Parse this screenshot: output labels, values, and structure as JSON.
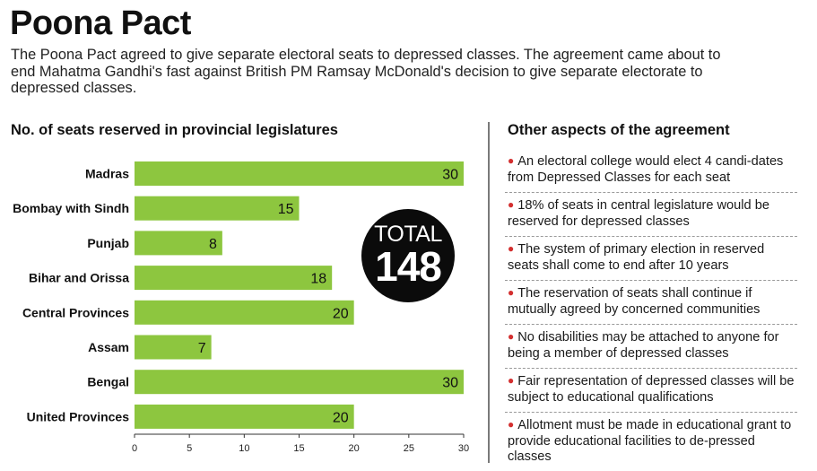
{
  "header": {
    "title": "Poona Pact",
    "subtitle": "The Poona Pact agreed to give separate electoral seats to depressed classes. The agreement came about to end Mahatma Gandhi's fast against British PM Ramsay McDonald's decision to give separate electorate to depressed classes."
  },
  "chart_heading": "No. of seats reserved in provincial legislatures",
  "total": {
    "label": "TOTAL",
    "value": "148"
  },
  "aspects": {
    "heading": "Other aspects of the agreement",
    "items": [
      "An electoral college would elect 4 candi-dates from Depressed Classes for each seat",
      "18% of seats in central legislature would be reserved for depressed classes",
      "The system of primary election in reserved seats shall come to end after 10 years",
      "The reservation of seats shall continue if mutually agreed by concerned communities",
      "No disabilities may be attached to anyone for being a member of depressed classes",
      "Fair representation of depressed classes will be subject to educational qualifications",
      "Allotment must be made in educational grant to provide educational facilities to de-pressed classes"
    ]
  },
  "colors": {
    "bar": "#8dc63f",
    "bullet": "#d32f2f",
    "badge": "#0b0b0b"
  },
  "chart_data": {
    "type": "bar",
    "orientation": "horizontal",
    "title": "No. of seats reserved in provincial legislatures",
    "xlabel": "",
    "ylabel": "",
    "categories": [
      "Madras",
      "Bombay with Sindh",
      "Punjab",
      "Bihar and Orissa",
      "Central Provinces",
      "Assam",
      "Bengal",
      "United Provinces"
    ],
    "values": [
      30,
      15,
      8,
      18,
      20,
      7,
      30,
      20
    ],
    "xlim": [
      0,
      30
    ],
    "xticks": [
      0,
      5,
      10,
      15,
      20,
      25,
      30
    ],
    "grid": false,
    "data_labels": true
  }
}
